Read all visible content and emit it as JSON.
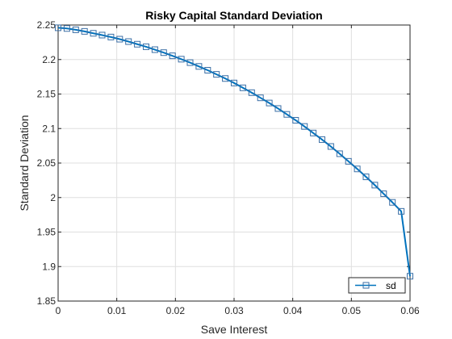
{
  "chart_data": {
    "type": "line",
    "title": "Risky Capital Standard Deviation",
    "xlabel": "Save Interest",
    "ylabel": "Standard Deviation",
    "xlim": [
      0,
      0.06
    ],
    "ylim": [
      1.85,
      2.25
    ],
    "xticks": [
      "0",
      "0.01",
      "0.02",
      "0.03",
      "0.04",
      "0.05",
      "0.06"
    ],
    "yticks": [
      "1.85",
      "1.9",
      "1.95",
      "2",
      "2.05",
      "2.1",
      "2.15",
      "2.2",
      "2.25"
    ],
    "grid": true,
    "legend_position": "bottom-right",
    "series": [
      {
        "name": "sd",
        "line_color": "#0072bd",
        "marker": "square",
        "marker_color": "#3a6ea5",
        "x": [
          0,
          0.0015,
          0.003,
          0.0045,
          0.006,
          0.0075,
          0.009,
          0.0105,
          0.012,
          0.0135,
          0.015,
          0.0165,
          0.018,
          0.0195,
          0.021,
          0.0225,
          0.024,
          0.0255,
          0.027,
          0.0285,
          0.03,
          0.0315,
          0.033,
          0.0345,
          0.036,
          0.0375,
          0.039,
          0.0405,
          0.042,
          0.0435,
          0.045,
          0.0465,
          0.048,
          0.0495,
          0.051,
          0.0525,
          0.054,
          0.0555,
          0.057,
          0.0585,
          0.06
        ],
        "y": [
          2.246,
          2.245,
          2.2431,
          2.2408,
          2.238,
          2.2354,
          2.2326,
          2.2295,
          2.226,
          2.2222,
          2.2185,
          2.2143,
          2.21,
          2.2054,
          2.2005,
          2.1955,
          2.19,
          2.1845,
          2.1785,
          2.1725,
          2.166,
          2.159,
          2.152,
          2.1445,
          2.137,
          2.129,
          2.1205,
          2.112,
          2.103,
          2.0935,
          2.084,
          2.074,
          2.0635,
          2.0525,
          2.0415,
          2.03,
          2.018,
          2.0055,
          1.993,
          1.98,
          1.886
        ]
      }
    ]
  }
}
